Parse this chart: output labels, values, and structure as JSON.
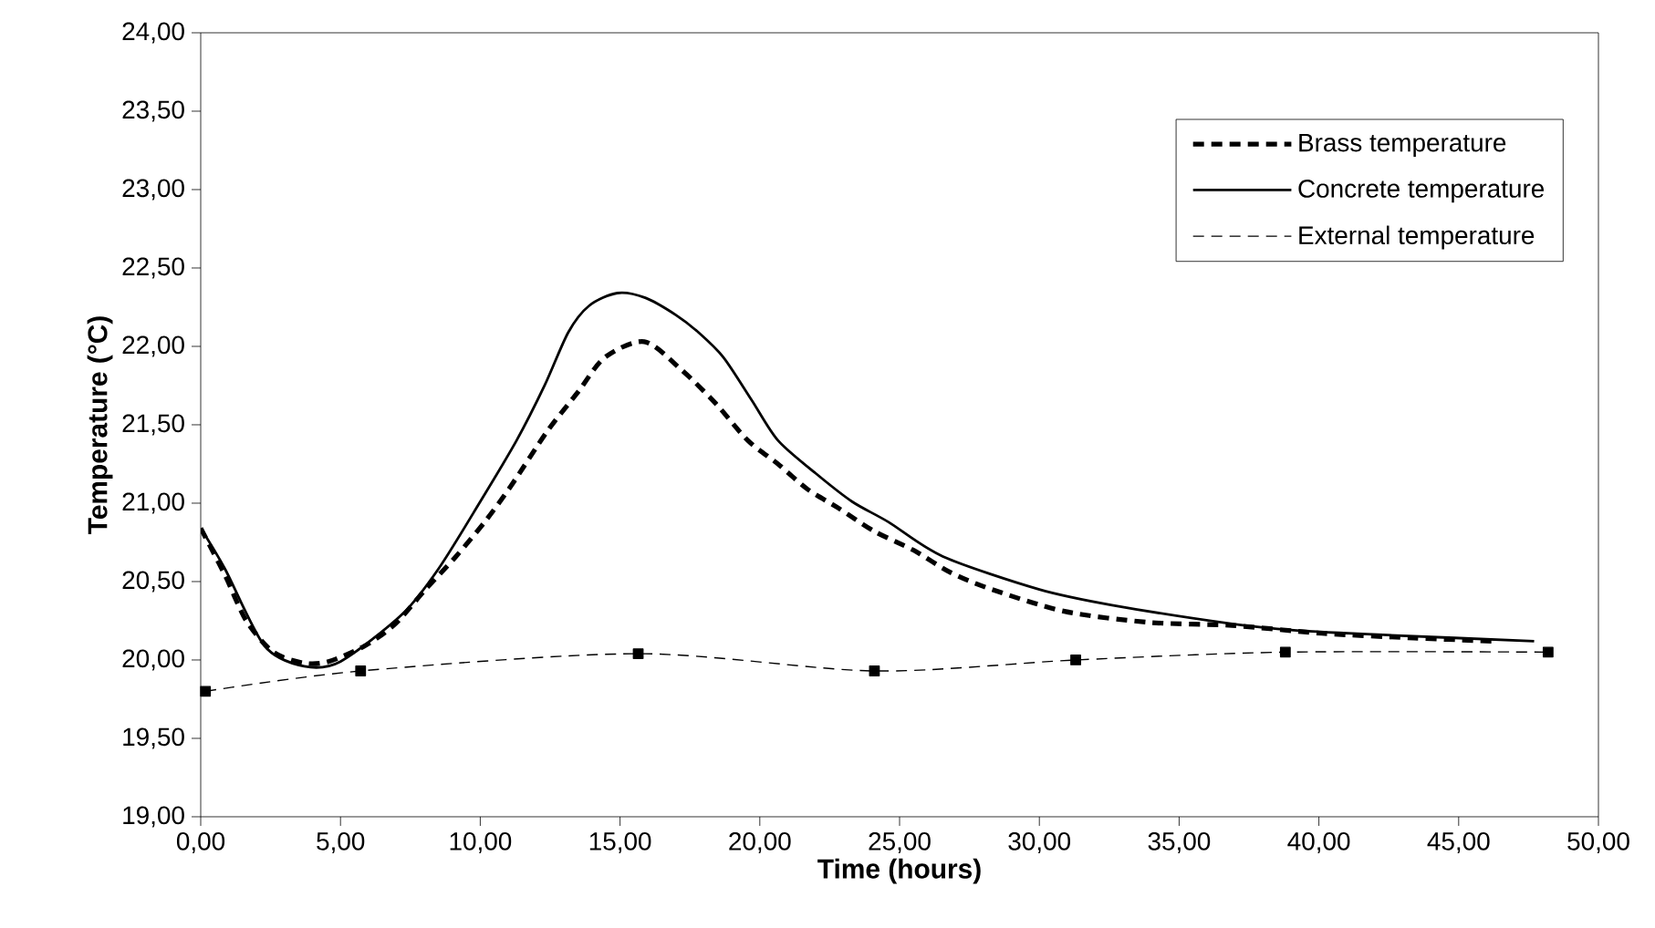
{
  "chart_data": {
    "type": "line",
    "xlabel": "Time (hours)",
    "ylabel": "Temperature (°C)",
    "xlim": [
      0,
      50
    ],
    "ylim": [
      19,
      24
    ],
    "xticks": [
      {
        "value": 0,
        "label": "0,00"
      },
      {
        "value": 5,
        "label": "5,00"
      },
      {
        "value": 10,
        "label": "10,00"
      },
      {
        "value": 15,
        "label": "15,00"
      },
      {
        "value": 20,
        "label": "20,00"
      },
      {
        "value": 25,
        "label": "25,00"
      },
      {
        "value": 30,
        "label": "30,00"
      },
      {
        "value": 35,
        "label": "35,00"
      },
      {
        "value": 40,
        "label": "40,00"
      },
      {
        "value": 45,
        "label": "45,00"
      },
      {
        "value": 50,
        "label": "50,00"
      }
    ],
    "yticks": [
      {
        "value": 19,
        "label": "19,00"
      },
      {
        "value": 19.5,
        "label": "19,50"
      },
      {
        "value": 20,
        "label": "20,00"
      },
      {
        "value": 20.5,
        "label": "20,50"
      },
      {
        "value": 21,
        "label": "21,00"
      },
      {
        "value": 21.5,
        "label": "21,50"
      },
      {
        "value": 22,
        "label": "22,00"
      },
      {
        "value": 22.5,
        "label": "22,50"
      },
      {
        "value": 23,
        "label": "23,00"
      },
      {
        "value": 23.5,
        "label": "23,50"
      },
      {
        "value": 24,
        "label": "24,00"
      }
    ],
    "grid": false,
    "legend": "top right",
    "series": [
      {
        "name": "Brass temperature",
        "color": "#000000",
        "line_style": "dashed",
        "marker": "none",
        "x": [
          0,
          0.87,
          1.63,
          2.6,
          3.7,
          4.57,
          5.87,
          6.96,
          8.04,
          9.13,
          10.2,
          11.1,
          12.4,
          13.5,
          14.46,
          15.87,
          17.2,
          18.4,
          19.57,
          20.65,
          21.7,
          22.8,
          24.1,
          25.5,
          26.8,
          28.3,
          30.9,
          33.9,
          36.9,
          40.1,
          43.4,
          46.2
        ],
        "values": [
          20.84,
          20.54,
          20.25,
          20.05,
          19.98,
          19.99,
          20.09,
          20.23,
          20.45,
          20.66,
          20.89,
          21.11,
          21.46,
          21.71,
          21.93,
          22.03,
          21.85,
          21.64,
          21.4,
          21.25,
          21.09,
          20.97,
          20.82,
          20.7,
          20.56,
          20.45,
          20.31,
          20.24,
          20.22,
          20.17,
          20.14,
          20.12
        ]
      },
      {
        "name": "Concrete temperature",
        "color": "#000000",
        "line_style": "solid",
        "marker": "none",
        "x": [
          0,
          0.87,
          2.28,
          3.7,
          5,
          7.2,
          8.5,
          10,
          11.3,
          12.3,
          13.15,
          13.9,
          14.9,
          15.9,
          17,
          17.8,
          18.7,
          19.7,
          20.65,
          22,
          23.3,
          24.6,
          26.55,
          30,
          32.6,
          36.9,
          39.1,
          42.3,
          47.7
        ],
        "values": [
          20.84,
          20.58,
          20.09,
          19.96,
          19.99,
          20.29,
          20.58,
          21.01,
          21.4,
          21.75,
          22.09,
          22.26,
          22.34,
          22.31,
          22.2,
          22.09,
          21.93,
          21.66,
          21.4,
          21.19,
          21.01,
          20.88,
          20.66,
          20.45,
          20.35,
          20.23,
          20.19,
          20.16,
          20.12
        ]
      },
      {
        "name": "External temperature",
        "color": "#000000",
        "line_style": "dashed",
        "marker": "square",
        "x": [
          0.17,
          5.72,
          15.65,
          24.1,
          31.3,
          38.8,
          48.2
        ],
        "values": [
          19.8,
          19.93,
          20.04,
          19.93,
          20.0,
          20.05,
          20.05
        ]
      }
    ]
  }
}
